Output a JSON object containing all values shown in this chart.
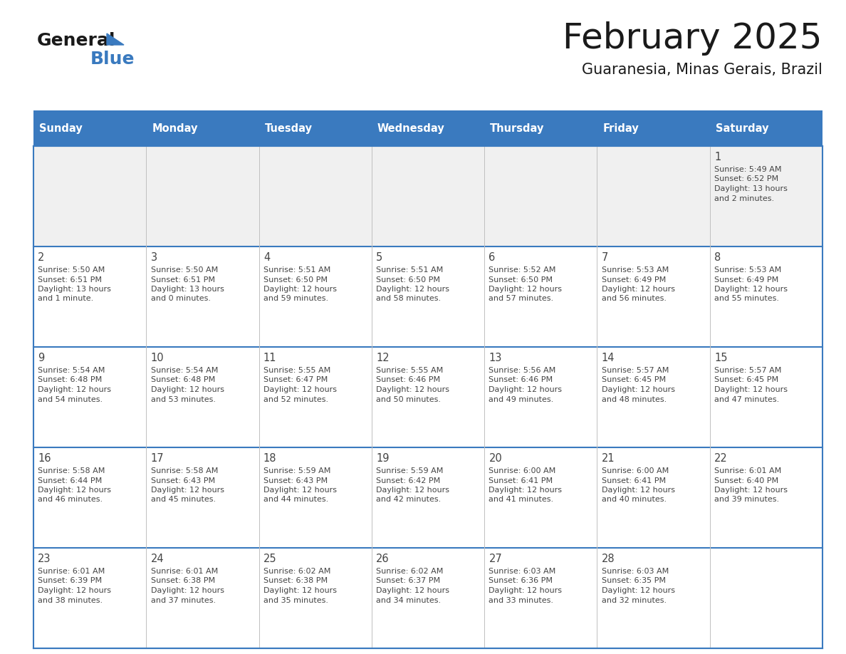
{
  "title": "February 2025",
  "subtitle": "Guaranesia, Minas Gerais, Brazil",
  "days_of_week": [
    "Sunday",
    "Monday",
    "Tuesday",
    "Wednesday",
    "Thursday",
    "Friday",
    "Saturday"
  ],
  "header_bg": "#3a7abf",
  "header_text": "#ffffff",
  "cell_bg_light": "#f0f0f0",
  "cell_bg_white": "#ffffff",
  "border_color": "#3a7abf",
  "text_color": "#444444",
  "num_weeks": 5,
  "calendar": [
    [
      null,
      null,
      null,
      null,
      null,
      null,
      {
        "day": "1",
        "sunrise": "5:49 AM",
        "sunset": "6:52 PM",
        "daylight": "13 hours",
        "daylight2": "and 2 minutes."
      }
    ],
    [
      {
        "day": "2",
        "sunrise": "5:50 AM",
        "sunset": "6:51 PM",
        "daylight": "13 hours",
        "daylight2": "and 1 minute."
      },
      {
        "day": "3",
        "sunrise": "5:50 AM",
        "sunset": "6:51 PM",
        "daylight": "13 hours",
        "daylight2": "and 0 minutes."
      },
      {
        "day": "4",
        "sunrise": "5:51 AM",
        "sunset": "6:50 PM",
        "daylight": "12 hours",
        "daylight2": "and 59 minutes."
      },
      {
        "day": "5",
        "sunrise": "5:51 AM",
        "sunset": "6:50 PM",
        "daylight": "12 hours",
        "daylight2": "and 58 minutes."
      },
      {
        "day": "6",
        "sunrise": "5:52 AM",
        "sunset": "6:50 PM",
        "daylight": "12 hours",
        "daylight2": "and 57 minutes."
      },
      {
        "day": "7",
        "sunrise": "5:53 AM",
        "sunset": "6:49 PM",
        "daylight": "12 hours",
        "daylight2": "and 56 minutes."
      },
      {
        "day": "8",
        "sunrise": "5:53 AM",
        "sunset": "6:49 PM",
        "daylight": "12 hours",
        "daylight2": "and 55 minutes."
      }
    ],
    [
      {
        "day": "9",
        "sunrise": "5:54 AM",
        "sunset": "6:48 PM",
        "daylight": "12 hours",
        "daylight2": "and 54 minutes."
      },
      {
        "day": "10",
        "sunrise": "5:54 AM",
        "sunset": "6:48 PM",
        "daylight": "12 hours",
        "daylight2": "and 53 minutes."
      },
      {
        "day": "11",
        "sunrise": "5:55 AM",
        "sunset": "6:47 PM",
        "daylight": "12 hours",
        "daylight2": "and 52 minutes."
      },
      {
        "day": "12",
        "sunrise": "5:55 AM",
        "sunset": "6:46 PM",
        "daylight": "12 hours",
        "daylight2": "and 50 minutes."
      },
      {
        "day": "13",
        "sunrise": "5:56 AM",
        "sunset": "6:46 PM",
        "daylight": "12 hours",
        "daylight2": "and 49 minutes."
      },
      {
        "day": "14",
        "sunrise": "5:57 AM",
        "sunset": "6:45 PM",
        "daylight": "12 hours",
        "daylight2": "and 48 minutes."
      },
      {
        "day": "15",
        "sunrise": "5:57 AM",
        "sunset": "6:45 PM",
        "daylight": "12 hours",
        "daylight2": "and 47 minutes."
      }
    ],
    [
      {
        "day": "16",
        "sunrise": "5:58 AM",
        "sunset": "6:44 PM",
        "daylight": "12 hours",
        "daylight2": "and 46 minutes."
      },
      {
        "day": "17",
        "sunrise": "5:58 AM",
        "sunset": "6:43 PM",
        "daylight": "12 hours",
        "daylight2": "and 45 minutes."
      },
      {
        "day": "18",
        "sunrise": "5:59 AM",
        "sunset": "6:43 PM",
        "daylight": "12 hours",
        "daylight2": "and 44 minutes."
      },
      {
        "day": "19",
        "sunrise": "5:59 AM",
        "sunset": "6:42 PM",
        "daylight": "12 hours",
        "daylight2": "and 42 minutes."
      },
      {
        "day": "20",
        "sunrise": "6:00 AM",
        "sunset": "6:41 PM",
        "daylight": "12 hours",
        "daylight2": "and 41 minutes."
      },
      {
        "day": "21",
        "sunrise": "6:00 AM",
        "sunset": "6:41 PM",
        "daylight": "12 hours",
        "daylight2": "and 40 minutes."
      },
      {
        "day": "22",
        "sunrise": "6:01 AM",
        "sunset": "6:40 PM",
        "daylight": "12 hours",
        "daylight2": "and 39 minutes."
      }
    ],
    [
      {
        "day": "23",
        "sunrise": "6:01 AM",
        "sunset": "6:39 PM",
        "daylight": "12 hours",
        "daylight2": "and 38 minutes."
      },
      {
        "day": "24",
        "sunrise": "6:01 AM",
        "sunset": "6:38 PM",
        "daylight": "12 hours",
        "daylight2": "and 37 minutes."
      },
      {
        "day": "25",
        "sunrise": "6:02 AM",
        "sunset": "6:38 PM",
        "daylight": "12 hours",
        "daylight2": "and 35 minutes."
      },
      {
        "day": "26",
        "sunrise": "6:02 AM",
        "sunset": "6:37 PM",
        "daylight": "12 hours",
        "daylight2": "and 34 minutes."
      },
      {
        "day": "27",
        "sunrise": "6:03 AM",
        "sunset": "6:36 PM",
        "daylight": "12 hours",
        "daylight2": "and 33 minutes."
      },
      {
        "day": "28",
        "sunrise": "6:03 AM",
        "sunset": "6:35 PM",
        "daylight": "12 hours",
        "daylight2": "and 32 minutes."
      },
      null
    ]
  ]
}
